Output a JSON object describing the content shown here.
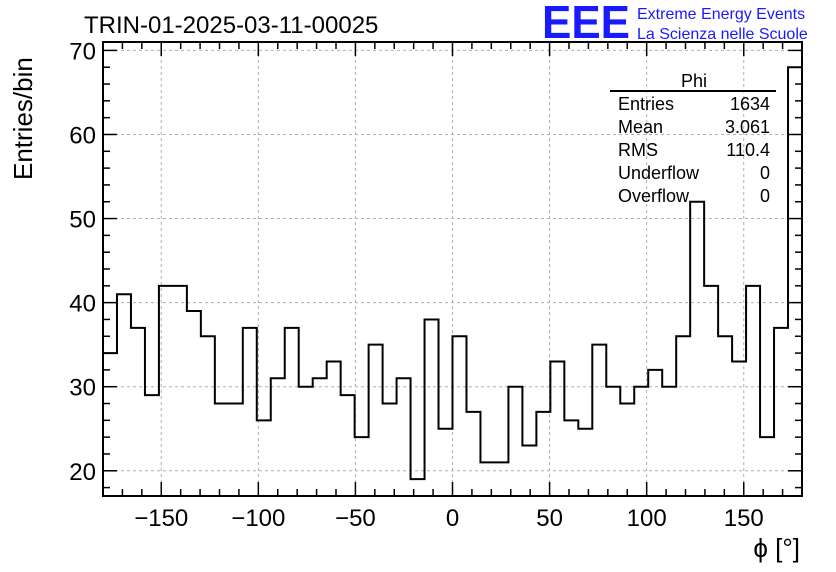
{
  "chart_data": {
    "type": "histogram",
    "title": "TRIN-01-2025-03-11-00025",
    "xlabel": "ϕ [°]",
    "ylabel": "Entries/bin",
    "xlim": [
      -180,
      180
    ],
    "ylim": [
      17,
      71
    ],
    "grid": true,
    "x_ticks": [
      -150,
      -100,
      -50,
      0,
      50,
      100,
      150
    ],
    "x_tick_labels": [
      "−150",
      "−100",
      "−50",
      "0",
      "50",
      "100",
      "150"
    ],
    "y_ticks": [
      20,
      30,
      40,
      50,
      60,
      70
    ],
    "y_tick_labels": [
      "20",
      "30",
      "40",
      "50",
      "60",
      "70"
    ],
    "bin_edges_start": -180,
    "bin_width": 7.2,
    "values": [
      34,
      41,
      37,
      29,
      42,
      42,
      39,
      36,
      28,
      28,
      37,
      26,
      31,
      37,
      30,
      31,
      33,
      29,
      24,
      35,
      28,
      31,
      19,
      38,
      25,
      36,
      27,
      21,
      21,
      30,
      23,
      27,
      33,
      26,
      25,
      35,
      30,
      28,
      30,
      32,
      30,
      36,
      52,
      42,
      36,
      33,
      42,
      24,
      37,
      68
    ],
    "stats_box": {
      "title": "Phi",
      "rows": [
        {
          "label": "Entries",
          "value": "1634"
        },
        {
          "label": "Mean",
          "value": "3.061"
        },
        {
          "label": "RMS",
          "value": "110.4"
        },
        {
          "label": "Underflow",
          "value": "0"
        },
        {
          "label": "Overflow",
          "value": "0"
        }
      ]
    }
  },
  "logo": {
    "text": "EEE",
    "line1": "Extreme Energy Events",
    "line2": "La Scienza nelle Scuole",
    "color": "#1a1aff"
  }
}
